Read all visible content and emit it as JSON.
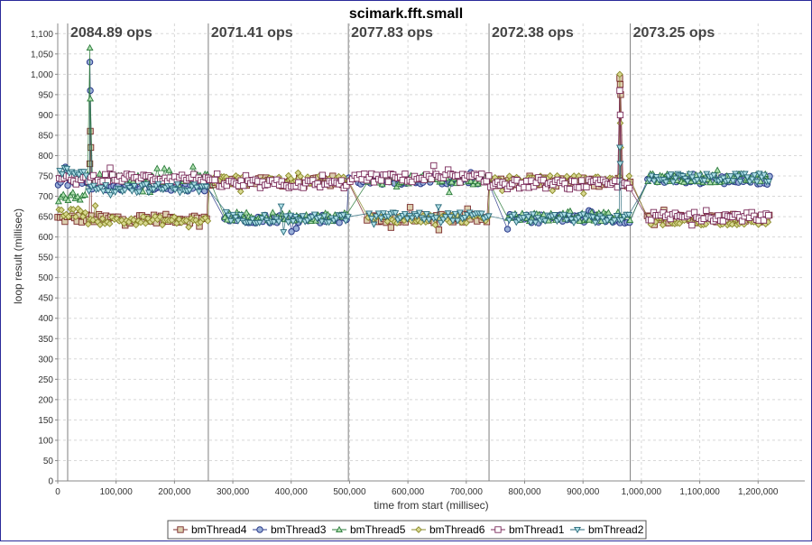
{
  "chart_data": {
    "type": "scatter",
    "title": "scimark.fft.small",
    "xlabel": "time from start (millisec)",
    "ylabel": "loop result (millisec)",
    "xlim": [
      0,
      1280000
    ],
    "ylim": [
      0,
      1125
    ],
    "x_ticks": [
      0,
      100000,
      200000,
      300000,
      400000,
      500000,
      600000,
      700000,
      800000,
      900000,
      1000000,
      1100000,
      1200000
    ],
    "x_tick_labels": [
      "0",
      "100,000",
      "200,000",
      "300,000",
      "400,000",
      "500,000",
      "600,000",
      "700,000",
      "800,000",
      "900,000",
      "1,000,000",
      "1,100,000",
      "1,200,000"
    ],
    "y_ticks": [
      0,
      50,
      100,
      150,
      200,
      250,
      300,
      350,
      400,
      450,
      500,
      550,
      600,
      650,
      700,
      750,
      800,
      850,
      900,
      950,
      1000,
      1050,
      1100
    ],
    "y_tick_labels": [
      "0",
      "50",
      "100",
      "150",
      "200",
      "250",
      "300",
      "350",
      "400",
      "450",
      "500",
      "550",
      "600",
      "650",
      "700",
      "750",
      "800",
      "850",
      "900",
      "950",
      "1,000",
      "1,050",
      "1,100"
    ],
    "grid": true,
    "legend_position": "bottom",
    "run_markers": [
      {
        "x": 17000,
        "label": "2084.89 ops"
      },
      {
        "x": 258000,
        "label": "2071.41 ops"
      },
      {
        "x": 498000,
        "label": "2077.83 ops"
      },
      {
        "x": 739000,
        "label": "2072.38 ops"
      },
      {
        "x": 981000,
        "label": "2073.25 ops"
      }
    ],
    "series": [
      {
        "name": "bmThread4",
        "marker": "square",
        "color": "#7a2a2a",
        "fill": "#ddd0b0",
        "segments": [
          {
            "x_range": [
              0,
              50000
            ],
            "level": 645
          },
          {
            "x_range": [
              50000,
              258000
            ],
            "level": 645
          },
          {
            "x_range": [
              258000,
              498000
            ],
            "level": 735
          },
          {
            "x_range": [
              530000,
              739000
            ],
            "level": 645
          },
          {
            "x_range": [
              739000,
              981000
            ],
            "level": 735
          },
          {
            "x_range": [
              1010000,
              1220000
            ],
            "level": 645
          }
        ],
        "spikes": [
          {
            "x": 55000,
            "values": [
              780,
              860,
              820
            ]
          },
          {
            "x": 963000,
            "values": [
              990,
              975,
              950
            ]
          }
        ]
      },
      {
        "name": "bmThread3",
        "marker": "circle",
        "color": "#2a3a8a",
        "fill": "#9ab0d8",
        "segments": [
          {
            "x_range": [
              0,
              50000
            ],
            "level": 735
          },
          {
            "x_range": [
              50000,
              258000
            ],
            "level": 725
          },
          {
            "x_range": [
              285000,
              498000
            ],
            "level": 645
          },
          {
            "x_range": [
              498000,
              739000
            ],
            "level": 740
          },
          {
            "x_range": [
              770000,
              981000
            ],
            "level": 645
          },
          {
            "x_range": [
              1010000,
              1220000
            ],
            "level": 740
          }
        ],
        "spikes": [
          {
            "x": 55000,
            "values": [
              1030,
              960
            ]
          }
        ]
      },
      {
        "name": "bmThread5",
        "marker": "triangle-up",
        "color": "#2a7a3a",
        "fill": "#b0e0b0",
        "segments": [
          {
            "x_range": [
              0,
              50000
            ],
            "level": 700
          },
          {
            "x_range": [
              50000,
              258000
            ],
            "level": 745
          },
          {
            "x_range": [
              285000,
              498000
            ],
            "level": 650
          },
          {
            "x_range": [
              530000,
              739000
            ],
            "level": 740
          },
          {
            "x_range": [
              770000,
              981000
            ],
            "level": 650
          },
          {
            "x_range": [
              1010000,
              1220000
            ],
            "level": 745
          }
        ],
        "spikes": [
          {
            "x": 55000,
            "values": [
              1065,
              940
            ]
          }
        ]
      },
      {
        "name": "bmThread6",
        "marker": "diamond",
        "color": "#8a8a2a",
        "fill": "#d8d890",
        "segments": [
          {
            "x_range": [
              0,
              50000
            ],
            "level": 660
          },
          {
            "x_range": [
              50000,
              258000
            ],
            "level": 640
          },
          {
            "x_range": [
              258000,
              498000
            ],
            "level": 740
          },
          {
            "x_range": [
              530000,
              739000
            ],
            "level": 645
          },
          {
            "x_range": [
              739000,
              981000
            ],
            "level": 740
          },
          {
            "x_range": [
              1010000,
              1220000
            ],
            "level": 640
          }
        ],
        "spikes": [
          {
            "x": 963000,
            "values": [
              1000,
              880,
              820
            ]
          }
        ]
      },
      {
        "name": "bmThread1",
        "marker": "square-open",
        "color": "#7a2a5a",
        "fill": "#f0e0f0",
        "segments": [
          {
            "x_range": [
              0,
              50000
            ],
            "level": 740
          },
          {
            "x_range": [
              50000,
              258000
            ],
            "level": 745
          },
          {
            "x_range": [
              258000,
              498000
            ],
            "level": 730
          },
          {
            "x_range": [
              498000,
              739000
            ],
            "level": 745
          },
          {
            "x_range": [
              739000,
              981000
            ],
            "level": 730
          },
          {
            "x_range": [
              1010000,
              1220000
            ],
            "level": 650
          }
        ],
        "spikes": [
          {
            "x": 963000,
            "values": [
              960,
              900
            ]
          }
        ]
      },
      {
        "name": "bmThread2",
        "marker": "triangle-down",
        "color": "#2a6a7a",
        "fill": "#b0e0e8",
        "segments": [
          {
            "x_range": [
              0,
              50000
            ],
            "level": 760
          },
          {
            "x_range": [
              50000,
              258000
            ],
            "level": 720
          },
          {
            "x_range": [
              285000,
              498000
            ],
            "level": 645
          },
          {
            "x_range": [
              530000,
              739000
            ],
            "level": 650
          },
          {
            "x_range": [
              770000,
              981000
            ],
            "level": 645
          },
          {
            "x_range": [
              1010000,
              1220000
            ],
            "level": 745
          }
        ],
        "spikes": [
          {
            "x": 963000,
            "values": [
              820,
              780
            ]
          }
        ]
      }
    ]
  }
}
